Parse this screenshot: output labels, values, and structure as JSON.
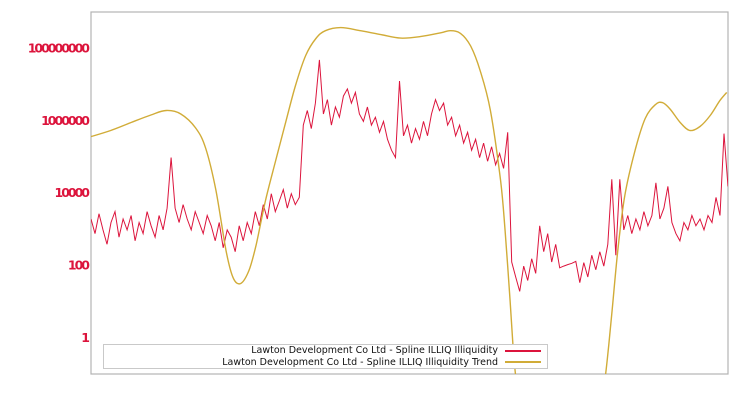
{
  "figure": {
    "background_color": "#ffffff",
    "plot_border_color": "#b3b3b3"
  },
  "chart_data": {
    "type": "line",
    "title": "",
    "xlabel": "",
    "ylabel": "",
    "grid": false,
    "x_axis": {
      "tick_labels": []
    },
    "y_axis": {
      "scale": "log",
      "tick_labels": [
        "1",
        "100",
        "10000",
        "1000000",
        "100000000"
      ],
      "tick_values": [
        1,
        100,
        10000,
        1000000,
        100000000
      ],
      "tick_color": "#dc143c",
      "range": [
        0.09,
        1100000000
      ]
    },
    "legend": {
      "position": "lower-center",
      "entries": [
        {
          "label": "Lawton Development Co Ltd - Spline ILLIQ Illiquidity",
          "color": "#dc143c"
        },
        {
          "label": "Lawton Development Co Ltd - Spline ILLIQ Illiquidity Trend",
          "color": "#d1ac38"
        }
      ]
    },
    "series": [
      {
        "name": "Lawton Development Co Ltd - Spline ILLIQ Illiquidity",
        "color": "#dc143c",
        "line_width": 1,
        "style": "jagged",
        "x_spacing": "even",
        "values": [
          2000,
          790,
          2800,
          1000,
          400,
          1600,
          3200,
          630,
          2000,
          1000,
          2500,
          500,
          1600,
          790,
          3200,
          1300,
          630,
          2500,
          1000,
          4000,
          100000,
          4000,
          1600,
          5000,
          2000,
          1000,
          3200,
          1600,
          790,
          2500,
          1300,
          500,
          1600,
          320,
          1000,
          630,
          250,
          1300,
          500,
          1600,
          790,
          3200,
          1300,
          5000,
          2000,
          10000,
          3200,
          6300,
          13000,
          4000,
          10000,
          5000,
          7900,
          790000,
          2000000,
          630000,
          3200000,
          50000000,
          1600000,
          4000000,
          790000,
          2500000,
          1300000,
          5000000,
          7900000,
          3200000,
          6300000,
          1600000,
          1000000,
          2500000,
          790000,
          1300000,
          500000,
          1000000,
          320000,
          160000,
          100000,
          13000000,
          400000,
          790000,
          250000,
          630000,
          320000,
          1000000,
          400000,
          1600000,
          4000000,
          2000000,
          3200000,
          790000,
          1300000,
          400000,
          790000,
          250000,
          500000,
          160000,
          320000,
          100000,
          250000,
          79000,
          200000,
          63000,
          130000,
          50000,
          500000,
          130,
          50,
          20,
          100,
          40,
          160,
          63,
          1300,
          250,
          790,
          130,
          400,
          90,
          100,
          110,
          120,
          135,
          35,
          125,
          50,
          200,
          79,
          250,
          100,
          400,
          25000,
          200,
          25000,
          1000,
          2500,
          790,
          2000,
          1000,
          3200,
          1300,
          2500,
          20000,
          2000,
          4000,
          16000,
          1600,
          790,
          500,
          1600,
          1000,
          2500,
          1300,
          2000,
          1000,
          2500,
          1600,
          7900,
          2500,
          460000,
          16000
        ]
      },
      {
        "name": "Lawton Development Co Ltd - Spline ILLIQ Illiquidity Trend",
        "color": "#d1ac38",
        "line_width": 1.4,
        "style": "smooth",
        "points": [
          [
            0.0,
            380000
          ],
          [
            0.031,
            560000
          ],
          [
            0.063,
            930000
          ],
          [
            0.094,
            1500000
          ],
          [
            0.118,
            2000000
          ],
          [
            0.141,
            1600000
          ],
          [
            0.165,
            630000
          ],
          [
            0.18,
            180000
          ],
          [
            0.196,
            12600
          ],
          [
            0.212,
            270
          ],
          [
            0.223,
            48
          ],
          [
            0.235,
            33
          ],
          [
            0.248,
            76
          ],
          [
            0.259,
            370
          ],
          [
            0.274,
            6500
          ],
          [
            0.29,
            83000
          ],
          [
            0.306,
            1000000
          ],
          [
            0.321,
            9800000
          ],
          [
            0.337,
            66000000
          ],
          [
            0.353,
            195000000
          ],
          [
            0.368,
            320000000
          ],
          [
            0.392,
            390000000
          ],
          [
            0.423,
            320000000
          ],
          [
            0.455,
            250000000
          ],
          [
            0.486,
            200000000
          ],
          [
            0.517,
            220000000
          ],
          [
            0.549,
            280000000
          ],
          [
            0.564,
            320000000
          ],
          [
            0.58,
            270000000
          ],
          [
            0.596,
            120000000
          ],
          [
            0.611,
            25000000
          ],
          [
            0.627,
            2000000
          ],
          [
            0.643,
            23000
          ],
          [
            0.65,
            950
          ],
          [
            0.658,
            11
          ],
          [
            0.663,
            0.47
          ],
          [
            0.668,
            0.06
          ],
          [
            0.674,
            0.02
          ],
          [
            0.799,
            0.02
          ],
          [
            0.806,
            0.06
          ],
          [
            0.812,
            0.47
          ],
          [
            0.818,
            5.9
          ],
          [
            0.827,
            270
          ],
          [
            0.838,
            8900
          ],
          [
            0.854,
            155000
          ],
          [
            0.87,
            1200000
          ],
          [
            0.886,
            2900000
          ],
          [
            0.897,
            3300000
          ],
          [
            0.909,
            2200000
          ],
          [
            0.925,
            930000
          ],
          [
            0.94,
            560000
          ],
          [
            0.956,
            720000
          ],
          [
            0.972,
            1450000
          ],
          [
            0.987,
            3700000
          ],
          [
            0.998,
            6300000
          ]
        ]
      }
    ]
  }
}
